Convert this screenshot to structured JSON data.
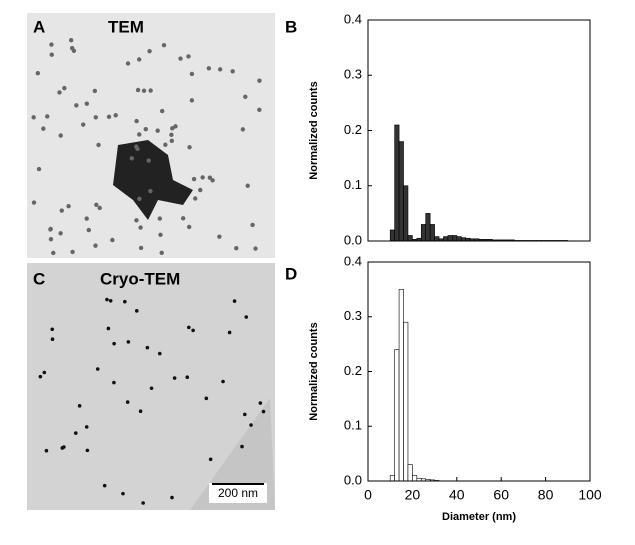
{
  "panels": [
    {
      "label": "A",
      "title": "TEM"
    },
    {
      "label": "C",
      "title": "Cryo-TEM",
      "scale_bar": "200 nm"
    }
  ],
  "chart_data": [
    {
      "type": "histogram",
      "panel_label": "B",
      "ylabel": "Normalized counts",
      "bins": [
        10,
        12,
        14,
        16,
        18,
        20,
        22,
        24,
        26,
        28,
        30,
        32,
        34,
        36,
        38,
        40,
        42,
        44,
        46,
        48,
        50,
        52,
        54,
        56,
        58,
        60,
        62,
        64,
        66,
        68,
        70,
        72,
        74,
        76,
        78,
        80,
        82,
        84,
        86,
        88,
        90
      ],
      "values": [
        0.02,
        0.21,
        0.18,
        0.1,
        0.01,
        0.003,
        0.005,
        0.03,
        0.05,
        0.03,
        0.008,
        0.004,
        0.008,
        0.01,
        0.01,
        0.008,
        0.006,
        0.005,
        0.004,
        0.004,
        0.003,
        0.003,
        0.003,
        0.002,
        0.002,
        0.002,
        0.002,
        0.002,
        0.001,
        0.001,
        0.001,
        0.001,
        0.001,
        0.001,
        0.001,
        0.001,
        0.001,
        0.001,
        0.001,
        0.001
      ],
      "color": "#333333",
      "xlim": [
        0,
        100
      ],
      "ylim": [
        0,
        0.4
      ],
      "yticks": [
        {
          "value": 0,
          "label": "0.0"
        },
        0.1,
        0.2,
        0.3,
        0.4
      ]
    },
    {
      "type": "histogram",
      "panel_label": "D",
      "ylabel": "Normalized counts",
      "xlabel": "Diameter (nm)",
      "bins": [
        10,
        12,
        14,
        16,
        18,
        20,
        22,
        24,
        26,
        28,
        30,
        32
      ],
      "values": [
        0.01,
        0.24,
        0.35,
        0.29,
        0.03,
        0.01,
        0.005,
        0.004,
        0.003,
        0.002,
        0.001
      ],
      "color": "#ffffff",
      "xlim": [
        0,
        100
      ],
      "ylim": [
        0,
        0.4
      ],
      "xticks": [
        0,
        20,
        40,
        60,
        80,
        100
      ],
      "yticks": [
        {
          "value": 0,
          "label": "0.0"
        },
        0.1,
        0.2,
        0.3,
        0.4
      ]
    }
  ]
}
